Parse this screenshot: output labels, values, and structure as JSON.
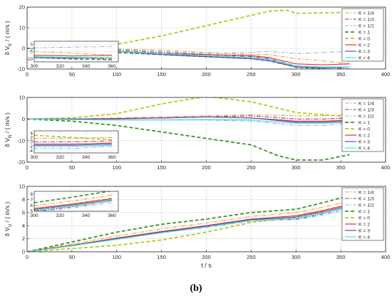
{
  "caption": "(b)",
  "colors": {
    "K=1/4": "#e8a33c",
    "K=1/3": "#8a3c8c",
    "K=1/2": "#8fb8e0",
    "K=1": "#3f8f2f",
    "K=0": "#c2c21a",
    "K=2": "#e03030",
    "K=3": "#6a48b0",
    "K=4": "#3ee6e0"
  },
  "legend_labels": [
    "K = 1/4",
    "K = 1/3",
    "K = 1/2",
    "K = 1",
    "K = 0",
    "K = 2",
    "K = 3",
    "K = 4"
  ],
  "chart_data": [
    {
      "type": "line",
      "ylabel": "δ V_E / ( m/s )",
      "xlim": [
        0,
        400
      ],
      "ylim": [
        -10,
        20
      ],
      "xticks": [
        0,
        50,
        100,
        150,
        200,
        250,
        300,
        350,
        400
      ],
      "yticks": [
        -10,
        0,
        10,
        20
      ],
      "grid": true,
      "legend_position": "top-right",
      "inset": {
        "xlim": [
          300,
          365
        ],
        "ylim": [
          -12,
          2
        ],
        "xticks": [
          300,
          320,
          340,
          360
        ],
        "yticks": [
          -10,
          -5,
          0
        ]
      },
      "series": [
        {
          "name": "K = 1/4",
          "x": [
            0,
            50,
            100,
            150,
            200,
            250,
            270,
            300,
            330,
            360
          ],
          "y": [
            0,
            0,
            -0.3,
            -0.8,
            -2,
            -3,
            -3,
            -5,
            -6,
            -7.5
          ]
        },
        {
          "name": "K = 1/3",
          "x": [
            0,
            50,
            100,
            150,
            200,
            250,
            270,
            300,
            330,
            360
          ],
          "y": [
            0,
            -0.3,
            -1,
            -2,
            -3,
            -4,
            -5,
            -8.5,
            -9,
            -10
          ]
        },
        {
          "name": "K = 1/2",
          "x": [
            0,
            50,
            100,
            150,
            200,
            250,
            270,
            300,
            330,
            360
          ],
          "y": [
            0,
            -0.2,
            -0.5,
            -1.5,
            -2.5,
            -2,
            -1.5,
            -2.5,
            -2,
            -1.5
          ]
        },
        {
          "name": "K = 1",
          "x": [
            0,
            50,
            100,
            150,
            200,
            250,
            270,
            300,
            330,
            360
          ],
          "y": [
            0,
            -0.5,
            -2,
            -3,
            -4,
            -5,
            -6,
            -9,
            -10,
            -10.5
          ]
        },
        {
          "name": "K = 0",
          "x": [
            0,
            50,
            100,
            150,
            200,
            250,
            270,
            290,
            300,
            330,
            360
          ],
          "y": [
            0,
            1,
            2,
            6,
            11,
            16,
            18,
            18.5,
            17,
            17.2,
            17.5
          ]
        },
        {
          "name": "K = 2",
          "x": [
            0,
            50,
            100,
            150,
            200,
            250,
            270,
            300,
            330,
            360
          ],
          "y": [
            0,
            -0.5,
            -1.5,
            -2.5,
            -3,
            -3.5,
            -4.5,
            -7.5,
            -8,
            -7.5
          ]
        },
        {
          "name": "K = 3",
          "x": [
            0,
            50,
            100,
            150,
            200,
            250,
            270,
            300,
            330,
            360
          ],
          "y": [
            0,
            -0.5,
            -1.5,
            -3,
            -4,
            -5,
            -6,
            -9,
            -9.5,
            -9
          ]
        },
        {
          "name": "K = 4",
          "x": [
            0,
            50,
            100,
            150,
            200,
            250,
            270,
            300,
            330,
            360
          ],
          "y": [
            0,
            -0.5,
            -1.5,
            -2.5,
            -3.5,
            -4.5,
            -5.5,
            -8.5,
            -9,
            -9
          ]
        }
      ]
    },
    {
      "type": "line",
      "ylabel": "δ V_N / ( m/s )",
      "xlim": [
        0,
        400
      ],
      "ylim": [
        -20,
        10
      ],
      "xticks": [
        0,
        50,
        100,
        150,
        200,
        250,
        300,
        350,
        400
      ],
      "yticks": [
        -20,
        -10,
        0,
        10
      ],
      "grid": true,
      "legend_position": "top-right",
      "inset": {
        "xlim": [
          300,
          365
        ],
        "ylim": [
          -5,
          5
        ],
        "xticks": [
          300,
          320,
          340,
          360
        ],
        "yticks": [
          -4,
          -2,
          0,
          2,
          4
        ]
      },
      "series": [
        {
          "name": "K = 1/4",
          "x": [
            0,
            50,
            100,
            150,
            200,
            250,
            300,
            330,
            360
          ],
          "y": [
            0,
            0,
            0.5,
            1,
            1.5,
            2,
            1.5,
            1.5,
            2
          ]
        },
        {
          "name": "K = 1/3",
          "x": [
            0,
            50,
            100,
            150,
            200,
            250,
            300,
            330,
            360
          ],
          "y": [
            0,
            0,
            0.2,
            0.5,
            1,
            1.5,
            0,
            0,
            0.5
          ]
        },
        {
          "name": "K = 1/2",
          "x": [
            0,
            50,
            100,
            150,
            200,
            250,
            300,
            330,
            360
          ],
          "y": [
            0,
            -0.3,
            -0.5,
            -0.5,
            -0.5,
            -1,
            -3,
            -3,
            -2
          ]
        },
        {
          "name": "K = 1",
          "x": [
            0,
            50,
            100,
            150,
            200,
            250,
            280,
            300,
            330,
            360
          ],
          "y": [
            0,
            -1,
            -3,
            -6,
            -9,
            -12,
            -17,
            -19,
            -19,
            -16.5
          ]
        },
        {
          "name": "K = 0",
          "x": [
            0,
            50,
            100,
            150,
            200,
            250,
            280,
            300,
            330,
            360
          ],
          "y": [
            0,
            0.5,
            2.5,
            7,
            10.5,
            8,
            5,
            3,
            2,
            1
          ]
        },
        {
          "name": "K = 2",
          "x": [
            0,
            50,
            100,
            150,
            200,
            250,
            300,
            330,
            360
          ],
          "y": [
            0,
            0,
            0,
            0.5,
            1,
            0.5,
            -1,
            -1,
            -0.5
          ]
        },
        {
          "name": "K = 3",
          "x": [
            0,
            50,
            100,
            150,
            200,
            250,
            300,
            330,
            360
          ],
          "y": [
            0,
            0,
            0.2,
            0.5,
            1,
            0.5,
            -1.5,
            -1.5,
            -1
          ]
        },
        {
          "name": "K = 4",
          "x": [
            0,
            50,
            100,
            150,
            200,
            250,
            300,
            330,
            360
          ],
          "y": [
            0,
            -0.3,
            -0.5,
            -0.5,
            -0.3,
            -0.5,
            -2,
            -2,
            -1.5
          ]
        }
      ]
    },
    {
      "type": "line",
      "ylabel": "δ V_U / ( m/s )",
      "xlabel": "t / s",
      "xlim": [
        0,
        400
      ],
      "ylim": [
        0,
        10
      ],
      "xticks": [
        0,
        50,
        100,
        150,
        200,
        250,
        300,
        350,
        400
      ],
      "yticks": [
        0,
        2,
        4,
        6,
        8,
        10
      ],
      "grid": true,
      "legend_position": "top-right",
      "inset": {
        "xlim": [
          300,
          365
        ],
        "ylim": [
          5,
          8.5
        ],
        "xticks": [
          300,
          320,
          340,
          360
        ],
        "yticks": [
          5,
          6,
          7,
          8
        ]
      },
      "series": [
        {
          "name": "K = 1/4",
          "x": [
            0,
            50,
            100,
            150,
            200,
            250,
            300,
            330,
            360
          ],
          "y": [
            0,
            1.2,
            2.4,
            3.5,
            4.4,
            5.4,
            6,
            6.8,
            7.8
          ]
        },
        {
          "name": "K = 1/3",
          "x": [
            0,
            50,
            100,
            150,
            200,
            250,
            300,
            330,
            360
          ],
          "y": [
            0,
            1,
            2,
            3,
            3.8,
            4.8,
            5,
            5.8,
            6.8
          ]
        },
        {
          "name": "K = 1/2",
          "x": [
            0,
            50,
            100,
            150,
            200,
            250,
            300,
            330,
            360
          ],
          "y": [
            0,
            0.9,
            1.9,
            2.9,
            3.7,
            4.7,
            4.9,
            5.6,
            6.5
          ]
        },
        {
          "name": "K = 1",
          "x": [
            0,
            50,
            100,
            150,
            200,
            250,
            300,
            330,
            360
          ],
          "y": [
            0,
            1.5,
            3,
            4.2,
            5,
            6,
            6.5,
            7.5,
            8.6
          ]
        },
        {
          "name": "K = 0",
          "x": [
            0,
            50,
            100,
            150,
            200,
            250,
            300,
            330,
            360
          ],
          "y": [
            0,
            0.5,
            1,
            1.8,
            3,
            4.5,
            5.3,
            6.3,
            7.3
          ]
        },
        {
          "name": "K = 2",
          "x": [
            0,
            50,
            100,
            150,
            200,
            250,
            300,
            330,
            360
          ],
          "y": [
            0,
            1,
            2.1,
            3.1,
            4,
            5,
            5.5,
            6.3,
            7.2
          ]
        },
        {
          "name": "K = 3",
          "x": [
            0,
            50,
            100,
            150,
            200,
            250,
            300,
            330,
            360
          ],
          "y": [
            0,
            0.95,
            2,
            3,
            3.9,
            4.9,
            5.3,
            6.1,
            7
          ]
        },
        {
          "name": "K = 4",
          "x": [
            0,
            50,
            100,
            150,
            200,
            250,
            300,
            330,
            360
          ],
          "y": [
            0,
            0.9,
            1.9,
            2.9,
            3.8,
            4.8,
            5.1,
            5.9,
            6.8
          ]
        }
      ]
    }
  ]
}
